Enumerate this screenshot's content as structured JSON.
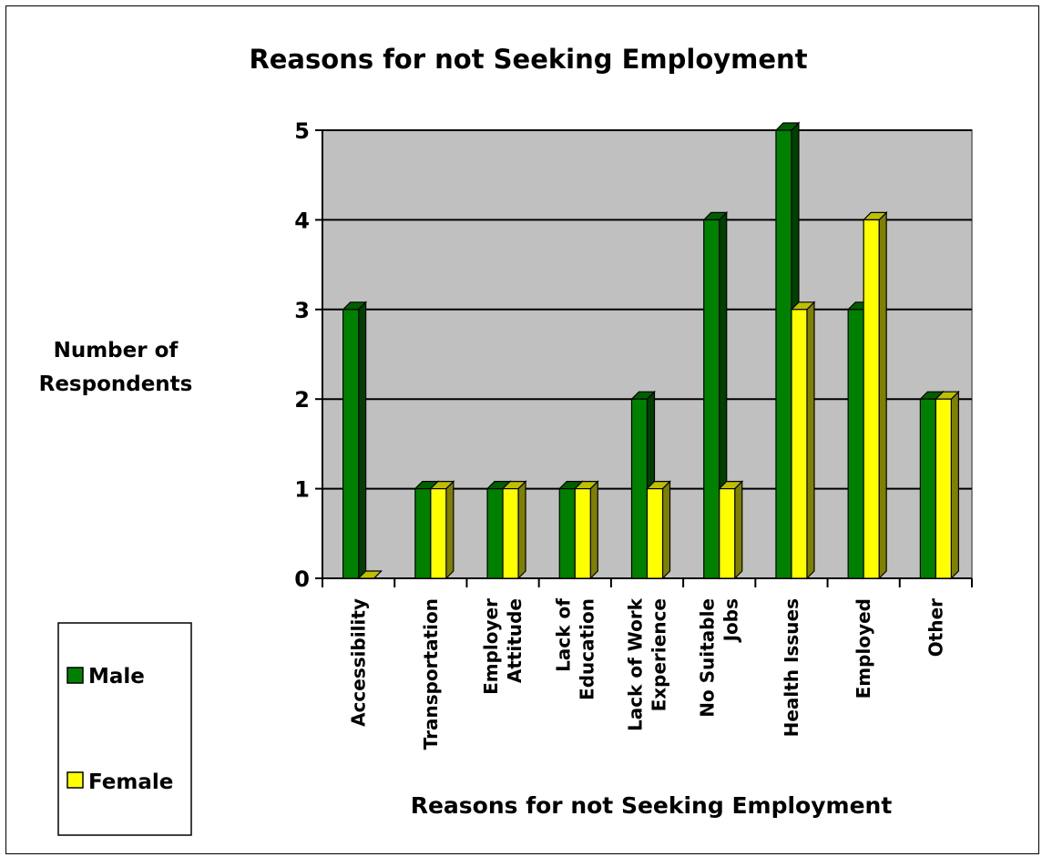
{
  "chart_data": {
    "type": "bar",
    "title": "Reasons for not Seeking Employment",
    "xlabel": "Reasons for not Seeking Employment",
    "ylabel_lines": [
      "Number of",
      "Respondents"
    ],
    "categories": [
      [
        "Accessibility"
      ],
      [
        "Transportation"
      ],
      [
        "Employer",
        "Attitude"
      ],
      [
        "Lack of",
        "Education"
      ],
      [
        "Lack of Work",
        "Experience"
      ],
      [
        "No Suitable",
        "Jobs"
      ],
      [
        "Health Issues"
      ],
      [
        "Employed"
      ],
      [
        "Other"
      ]
    ],
    "series": [
      {
        "name": "Male",
        "values": [
          3,
          1,
          1,
          1,
          2,
          4,
          5,
          3,
          2
        ],
        "color": "#008000"
      },
      {
        "name": "Female",
        "values": [
          0,
          1,
          1,
          1,
          1,
          1,
          3,
          4,
          2
        ],
        "color": "#ffff00"
      }
    ],
    "ylim": [
      0,
      5
    ],
    "yticks": [
      "0",
      "1",
      "2",
      "3",
      "4",
      "5"
    ],
    "grid": true,
    "legend": "bottom-left",
    "plot_background": "#c0c0c0"
  }
}
